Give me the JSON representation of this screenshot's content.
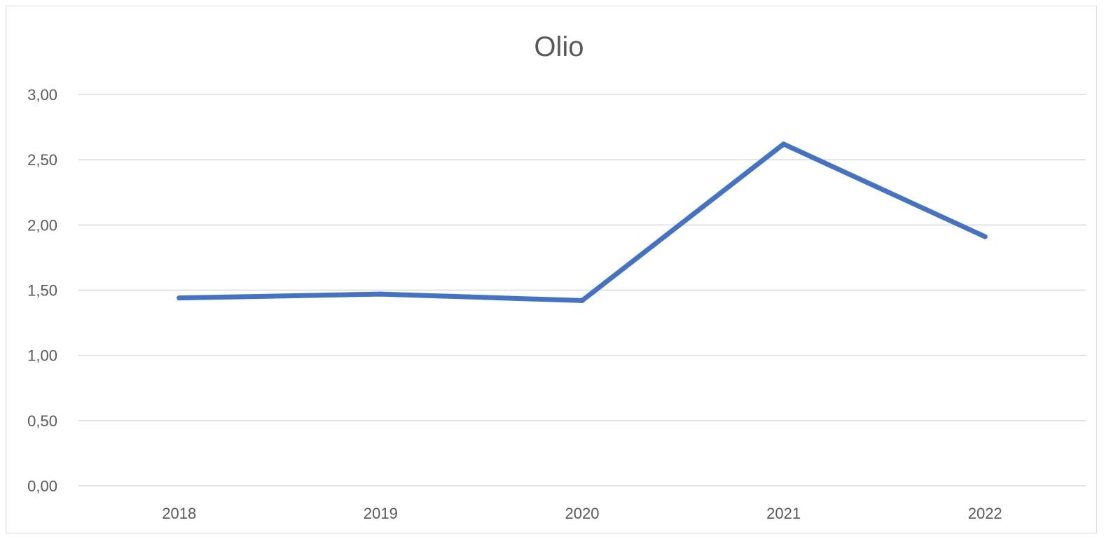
{
  "chart_data": {
    "type": "line",
    "title": "Olio",
    "xlabel": "",
    "ylabel": "",
    "categories": [
      "2018",
      "2019",
      "2020",
      "2021",
      "2022"
    ],
    "series": [
      {
        "values": [
          1.44,
          1.47,
          1.42,
          2.62,
          1.91
        ],
        "color": "#4472c4"
      }
    ],
    "ylim": [
      0,
      3
    ],
    "y_ticks": [
      0,
      0.5,
      1,
      1.5,
      2,
      2.5,
      3
    ],
    "y_tick_labels": [
      "0,00",
      "0,50",
      "1,00",
      "1,50",
      "2,00",
      "2,50",
      "3,00"
    ],
    "grid": true,
    "gridline_color": "#d9d9d9",
    "legend": "none"
  }
}
